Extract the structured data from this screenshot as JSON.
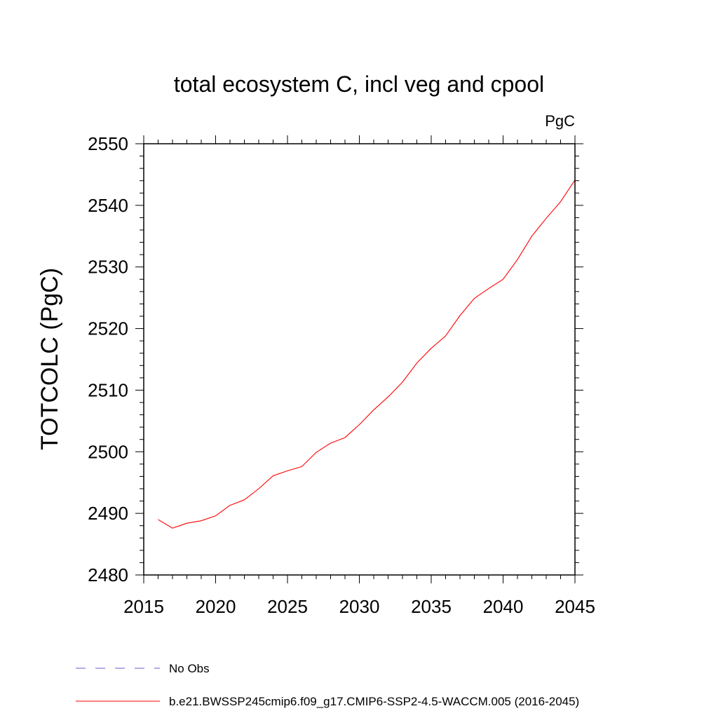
{
  "chart_data": {
    "type": "line",
    "title": "total ecosystem C, incl veg and cpool",
    "units": "PgC",
    "ylabel": "TOTCOLC  (PgC)",
    "xlabel": "",
    "xlim": [
      2015,
      2045
    ],
    "ylim": [
      2480,
      2550
    ],
    "xticks": [
      2015,
      2020,
      2025,
      2030,
      2035,
      2040,
      2045
    ],
    "yticks": [
      2480,
      2490,
      2500,
      2510,
      2520,
      2530,
      2540,
      2550
    ],
    "x_minor_step": 1,
    "y_minor_step": 2,
    "grid": false,
    "legend_position": "bottom",
    "series": [
      {
        "name": "No Obs",
        "color": "#6a5acd",
        "style": "dashed",
        "x": [],
        "y": []
      },
      {
        "name": "b.e21.BWSSP245cmip6.f09_g17.CMIP6-SSP2-4.5-WACCM.005 (2016-2045)",
        "color": "#ff0000",
        "style": "solid",
        "x": [
          2016,
          2017,
          2018,
          2019,
          2020,
          2021,
          2022,
          2023,
          2024,
          2025,
          2026,
          2027,
          2028,
          2029,
          2030,
          2031,
          2032,
          2033,
          2034,
          2035,
          2036,
          2037,
          2038,
          2039,
          2040,
          2041,
          2042,
          2043,
          2044,
          2045
        ],
        "y": [
          2489.0,
          2487.6,
          2488.4,
          2488.8,
          2489.6,
          2491.3,
          2492.2,
          2494.0,
          2496.1,
          2496.9,
          2497.6,
          2499.9,
          2501.4,
          2502.3,
          2504.4,
          2506.8,
          2508.9,
          2511.3,
          2514.4,
          2516.8,
          2518.8,
          2522.1,
          2524.9,
          2526.5,
          2528.0,
          2531.2,
          2535.0,
          2537.9,
          2540.6,
          2544.1
        ]
      }
    ]
  }
}
